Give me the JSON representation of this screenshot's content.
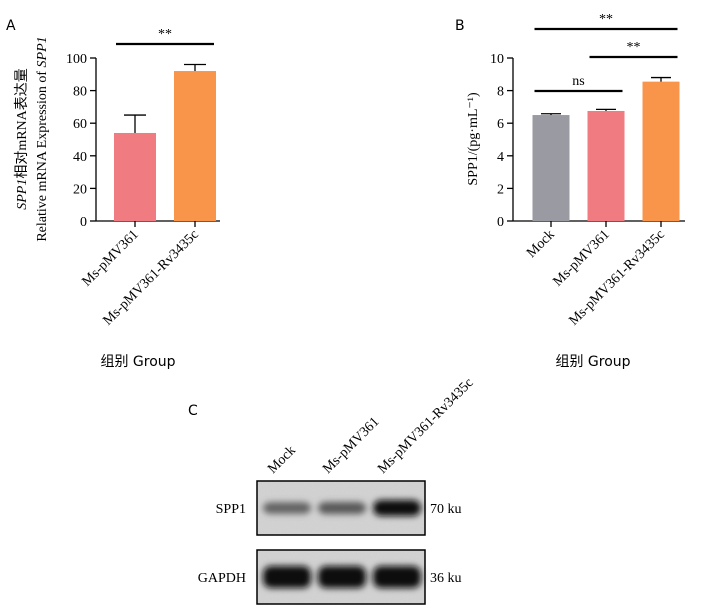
{
  "panels": {
    "a": {
      "letter": "A"
    },
    "b": {
      "letter": "B"
    },
    "c": {
      "letter": "C"
    }
  },
  "chart_data": [
    {
      "type": "bar",
      "panel": "A",
      "categories": [
        "Ms-pMV361",
        "Ms-pMV361-Rv3435c"
      ],
      "values": [
        54,
        92
      ],
      "errors": [
        11,
        4
      ],
      "colors": [
        "#f07b80",
        "#f9954a"
      ],
      "ylabel_parts": [
        {
          "text": "SPP1",
          "italic": true
        },
        {
          "text": "相对mRNA表达量",
          "italic": false
        }
      ],
      "ylabel_line2_parts": [
        {
          "text": "Relative mRNA Expression of ",
          "italic": false
        },
        {
          "text": "SPP1",
          "italic": true
        }
      ],
      "xlabel": "组别 Group",
      "ylim": [
        0,
        100
      ],
      "yticks": [
        0,
        20,
        40,
        60,
        80,
        100
      ],
      "grid": false,
      "significance": [
        {
          "from": 0,
          "to": 1,
          "label": "**"
        }
      ]
    },
    {
      "type": "bar",
      "panel": "B",
      "categories": [
        "Mock",
        "Ms-pMV361",
        "Ms-pMV361-Rv3435c"
      ],
      "values": [
        6.5,
        6.75,
        8.55
      ],
      "errors": [
        0.08,
        0.1,
        0.25
      ],
      "colors": [
        "#9a9aa3",
        "#f07b80",
        "#f9954a"
      ],
      "ylabel": "SPP1/(pg·mL⁻¹)",
      "xlabel": "组别 Group",
      "ylim": [
        0,
        10
      ],
      "yticks": [
        0,
        2,
        4,
        6,
        8,
        10
      ],
      "grid": false,
      "significance": [
        {
          "from": 0,
          "to": 1,
          "label": "ns"
        },
        {
          "from": 1,
          "to": 2,
          "label": "**"
        },
        {
          "from": 0,
          "to": 2,
          "label": "**"
        }
      ]
    }
  ],
  "blot": {
    "lanes": [
      "Mock",
      "Ms-pMV361",
      "Ms-pMV361-Rv3435c"
    ],
    "rows": [
      {
        "protein": "SPP1",
        "size": "70 ku",
        "intensity": [
          0.55,
          0.6,
          1.0
        ]
      },
      {
        "protein": "GAPDH",
        "size": "36 ku",
        "intensity": [
          1.0,
          1.0,
          1.0
        ]
      }
    ]
  }
}
